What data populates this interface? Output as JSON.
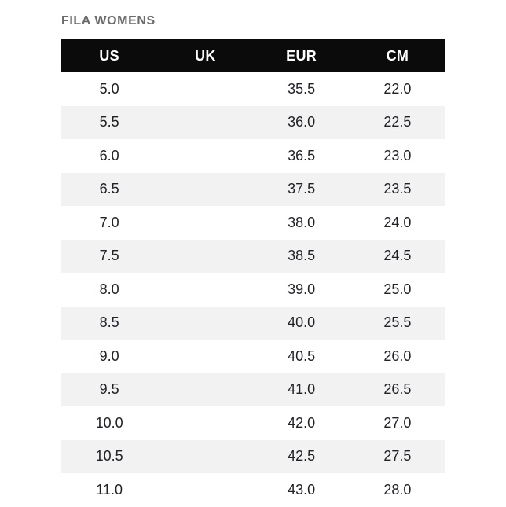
{
  "title": "FILA WOMENS",
  "chart_data": {
    "type": "table",
    "title": "FILA WOMENS",
    "columns": [
      "US",
      "UK",
      "EUR",
      "CM"
    ],
    "rows": [
      [
        "5.0",
        "",
        "35.5",
        "22.0"
      ],
      [
        "5.5",
        "",
        "36.0",
        "22.5"
      ],
      [
        "6.0",
        "",
        "36.5",
        "23.0"
      ],
      [
        "6.5",
        "",
        "37.5",
        "23.5"
      ],
      [
        "7.0",
        "",
        "38.0",
        "24.0"
      ],
      [
        "7.5",
        "",
        "38.5",
        "24.5"
      ],
      [
        "8.0",
        "",
        "39.0",
        "25.0"
      ],
      [
        "8.5",
        "",
        "40.0",
        "25.5"
      ],
      [
        "9.0",
        "",
        "40.5",
        "26.0"
      ],
      [
        "9.5",
        "",
        "41.0",
        "26.5"
      ],
      [
        "10.0",
        "",
        "42.0",
        "27.0"
      ],
      [
        "10.5",
        "",
        "42.5",
        "27.5"
      ],
      [
        "11.0",
        "",
        "43.0",
        "28.0"
      ]
    ],
    "layout": {
      "row_striping": "even rows light gray",
      "header_style": "black bar, white bold text",
      "uk_column": "empty for all rows"
    }
  },
  "colors": {
    "page_bg": "#ffffff",
    "title_text": "#6b6b6b",
    "header_bg": "#0b0b0b",
    "header_text": "#ffffff",
    "row_alt_bg": "#f2f2f2",
    "cell_text": "#212128"
  }
}
